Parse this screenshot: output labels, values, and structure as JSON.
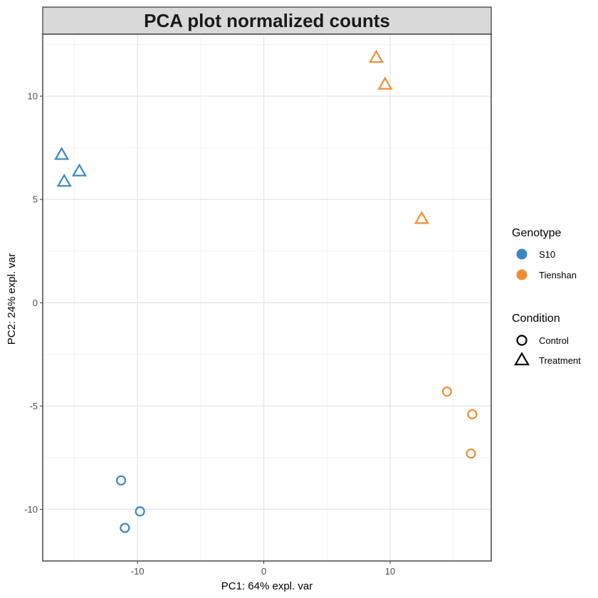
{
  "chart_data": {
    "type": "scatter",
    "title": "PCA plot normalized counts",
    "xlabel": "PC1: 64% expl. var",
    "ylabel": "PC2: 24% expl. var",
    "xlim": [
      -17.5,
      18
    ],
    "ylim": [
      -12.5,
      13
    ],
    "xticks": [
      -10,
      0,
      10
    ],
    "xtick_labels": [
      "-10",
      "0",
      "10"
    ],
    "yticks": [
      -10,
      -5,
      0,
      5,
      10
    ],
    "ytick_labels": [
      "-10",
      "-5",
      "0",
      "5",
      "10"
    ],
    "grid": true,
    "legend_position": "right",
    "legends": {
      "genotype": {
        "title": "Genotype",
        "entries": [
          {
            "label": "S10",
            "color": "#3a87c4"
          },
          {
            "label": "Tienshan",
            "color": "#f28c34"
          }
        ]
      },
      "condition": {
        "title": "Condition",
        "entries": [
          {
            "label": "Control",
            "shape": "circle"
          },
          {
            "label": "Treatment",
            "shape": "triangle"
          }
        ]
      }
    },
    "points": [
      {
        "x": -16.0,
        "y": 7.2,
        "genotype": "S10",
        "condition": "Treatment"
      },
      {
        "x": -14.6,
        "y": 6.4,
        "genotype": "S10",
        "condition": "Treatment"
      },
      {
        "x": -15.8,
        "y": 5.9,
        "genotype": "S10",
        "condition": "Treatment"
      },
      {
        "x": -11.3,
        "y": -8.6,
        "genotype": "S10",
        "condition": "Control"
      },
      {
        "x": -9.8,
        "y": -10.1,
        "genotype": "S10",
        "condition": "Control"
      },
      {
        "x": -11.0,
        "y": -10.9,
        "genotype": "S10",
        "condition": "Control"
      },
      {
        "x": 8.9,
        "y": 11.9,
        "genotype": "Tienshan",
        "condition": "Treatment"
      },
      {
        "x": 9.6,
        "y": 10.6,
        "genotype": "Tienshan",
        "condition": "Treatment"
      },
      {
        "x": 12.5,
        "y": 4.1,
        "genotype": "Tienshan",
        "condition": "Treatment"
      },
      {
        "x": 14.5,
        "y": -4.3,
        "genotype": "Tienshan",
        "condition": "Control"
      },
      {
        "x": 16.5,
        "y": -5.4,
        "genotype": "Tienshan",
        "condition": "Control"
      },
      {
        "x": 16.4,
        "y": -7.3,
        "genotype": "Tienshan",
        "condition": "Control"
      }
    ]
  }
}
